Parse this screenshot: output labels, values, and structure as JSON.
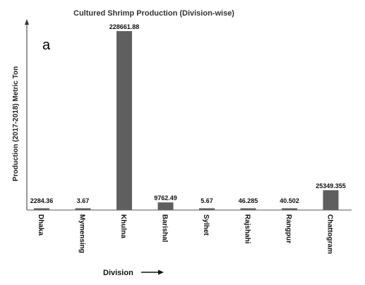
{
  "chart_data": {
    "type": "bar",
    "title": "Cultured Shrimp Production  (Division-wise)",
    "panel_label": "a",
    "ylabel": "Production  (2017-2018)  Metric Ton",
    "xlabel": "Division",
    "categories": [
      "Dhaka",
      "Mymensing",
      "Khulna",
      "Barishal",
      "Sylhet",
      "Rajshahi",
      "Rangpur",
      "Chattogram"
    ],
    "values": [
      2284.36,
      3.67,
      228661.88,
      9762.49,
      5.67,
      46.285,
      40.502,
      25349.355
    ],
    "value_labels": [
      "2284.36",
      "3.67",
      "228661.88",
      "9762.49",
      "5.67",
      "46.285",
      "40.502",
      "25349.355"
    ],
    "ylim": [
      0,
      228661.88
    ],
    "grid": false,
    "legend": "none",
    "bar_color": "#5f5f5f"
  }
}
